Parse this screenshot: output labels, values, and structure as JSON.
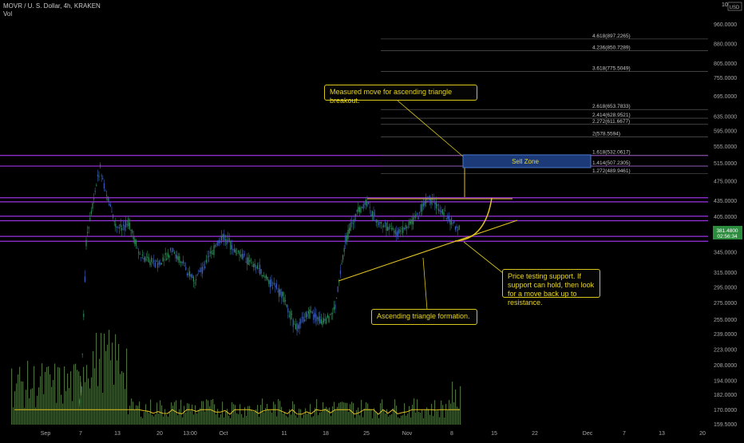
{
  "header": {
    "symbol": "MOVR / U. S. Dollar, 4h, KRAKEN",
    "vol_label": "Vol"
  },
  "currency_badge": {
    "top": "10",
    "bottom": "USD"
  },
  "price_badge": {
    "price": "381.4800",
    "countdown": "02:56:34"
  },
  "colors": {
    "background": "#000000",
    "candle": "#3a5dbf",
    "volume": "#5a7a4a",
    "level_line": "#9b32e0",
    "annotation": "#e8d620",
    "price_badge": "#2a8c3c",
    "sell_zone": "#1c3a78"
  },
  "y_axis_ticks": [
    "960.0000",
    "880.0000",
    "805.0000",
    "755.0000",
    "695.0000",
    "635.0000",
    "595.0000",
    "555.0000",
    "515.0000",
    "475.0000",
    "435.0000",
    "405.0000",
    "375.0000",
    "345.0000",
    "315.0000",
    "295.0000",
    "275.0000",
    "255.0000",
    "239.0000",
    "223.0000",
    "208.0000",
    "194.0000",
    "182.0000",
    "170.0000",
    "159.5000"
  ],
  "x_axis_ticks": [
    "Sep",
    "7",
    "13",
    "20",
    "13:00",
    "Oct",
    "11",
    "18",
    "25",
    "Nov",
    "8",
    "15",
    "22",
    "Dec",
    "7",
    "13",
    "20"
  ],
  "fib_levels": [
    "4.618(897.2265)",
    "4.236(850.7289)",
    "3.618(775.5049)",
    "2.618(653.7833)",
    "2.414(628.9521)",
    "2.272(611.6677)",
    "2(578.5594)",
    "1.618(532.0617)",
    "1.414(507.2305)",
    "1.272(489.9461)"
  ],
  "sell_zone": {
    "label": "Sell Zone"
  },
  "annotations": {
    "measured_move": "Measured move for ascending triangle breakout.",
    "price_testing": "Price testing support. If support can hold, then look for a move back up to resistance.",
    "ascending_triangle": "Ascending triangle formation."
  },
  "chart_data": {
    "type": "candlestick",
    "title": "MOVR / U. S. Dollar, 4h, KRAKEN",
    "ylim": [
      159.5,
      1000
    ],
    "y_scale": "log",
    "price_path_approx": [
      {
        "x": "Sep 7",
        "y": 175
      },
      {
        "x": "Sep 8",
        "y": 360
      },
      {
        "x": "Sep 9",
        "y": 505
      },
      {
        "x": "Sep 11",
        "y": 410
      },
      {
        "x": "Sep 13",
        "y": 380
      },
      {
        "x": "Sep 15",
        "y": 395
      },
      {
        "x": "Sep 17",
        "y": 340
      },
      {
        "x": "Sep 20",
        "y": 325
      },
      {
        "x": "Sep 22",
        "y": 345
      },
      {
        "x": "Sep 24",
        "y": 330
      },
      {
        "x": "Sep 26",
        "y": 300
      },
      {
        "x": "Sep 28",
        "y": 335
      },
      {
        "x": "Sep 30",
        "y": 370
      },
      {
        "x": "Oct 2",
        "y": 345
      },
      {
        "x": "Oct 5",
        "y": 325
      },
      {
        "x": "Oct 8",
        "y": 280
      },
      {
        "x": "Oct 11",
        "y": 245
      },
      {
        "x": "Oct 13",
        "y": 262
      },
      {
        "x": "Oct 15",
        "y": 250
      },
      {
        "x": "Oct 18",
        "y": 270
      },
      {
        "x": "Oct 20",
        "y": 360
      },
      {
        "x": "Oct 22",
        "y": 405
      },
      {
        "x": "Oct 24",
        "y": 430
      },
      {
        "x": "Oct 26",
        "y": 395
      },
      {
        "x": "Oct 28",
        "y": 385
      },
      {
        "x": "Oct 30",
        "y": 375
      },
      {
        "x": "Nov 1",
        "y": 385
      },
      {
        "x": "Nov 3",
        "y": 405
      },
      {
        "x": "Nov 5",
        "y": 440
      },
      {
        "x": "Nov 7",
        "y": 420
      },
      {
        "x": "Nov 9",
        "y": 381.48
      }
    ],
    "horizontal_levels": [
      532.06,
      507.23,
      440,
      432,
      405,
      397,
      370,
      362
    ],
    "fib_extension": [
      {
        "ratio": 4.618,
        "price": 897.2265
      },
      {
        "ratio": 4.236,
        "price": 850.7289
      },
      {
        "ratio": 3.618,
        "price": 775.5049
      },
      {
        "ratio": 2.618,
        "price": 653.7833
      },
      {
        "ratio": 2.414,
        "price": 628.9521
      },
      {
        "ratio": 2.272,
        "price": 611.6677
      },
      {
        "ratio": 2,
        "price": 578.5594
      },
      {
        "ratio": 1.618,
        "price": 532.0617
      },
      {
        "ratio": 1.414,
        "price": 507.2305
      },
      {
        "ratio": 1.272,
        "price": 489.9461
      }
    ],
    "sell_zone_range": [
      507.23,
      532.06
    ],
    "last_price": 381.48
  }
}
